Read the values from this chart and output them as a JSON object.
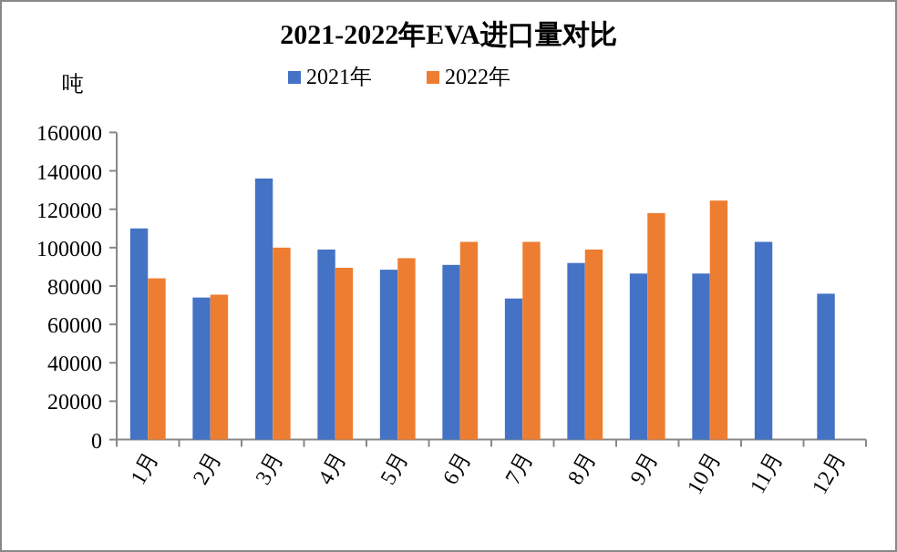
{
  "chart_data": {
    "type": "bar",
    "title": "2021-2022年EVA进口量对比",
    "ylabel": "吨",
    "categories": [
      "1月",
      "2月",
      "3月",
      "4月",
      "5月",
      "6月",
      "7月",
      "8月",
      "9月",
      "10月",
      "11月",
      "12月"
    ],
    "series": [
      {
        "name": "2021年",
        "color": "#4472c4",
        "values": [
          110000,
          74000,
          136000,
          99000,
          88500,
          91000,
          73500,
          92000,
          86500,
          86500,
          103000,
          76000
        ]
      },
      {
        "name": "2022年",
        "color": "#ed7d31",
        "values": [
          84000,
          75500,
          100000,
          89500,
          94500,
          103000,
          103000,
          99000,
          118000,
          124500,
          null,
          null
        ]
      }
    ],
    "ylim": [
      0,
      160000
    ],
    "yticks": [
      0,
      20000,
      40000,
      60000,
      80000,
      100000,
      120000,
      140000,
      160000
    ],
    "grid": false,
    "legend": "top"
  }
}
